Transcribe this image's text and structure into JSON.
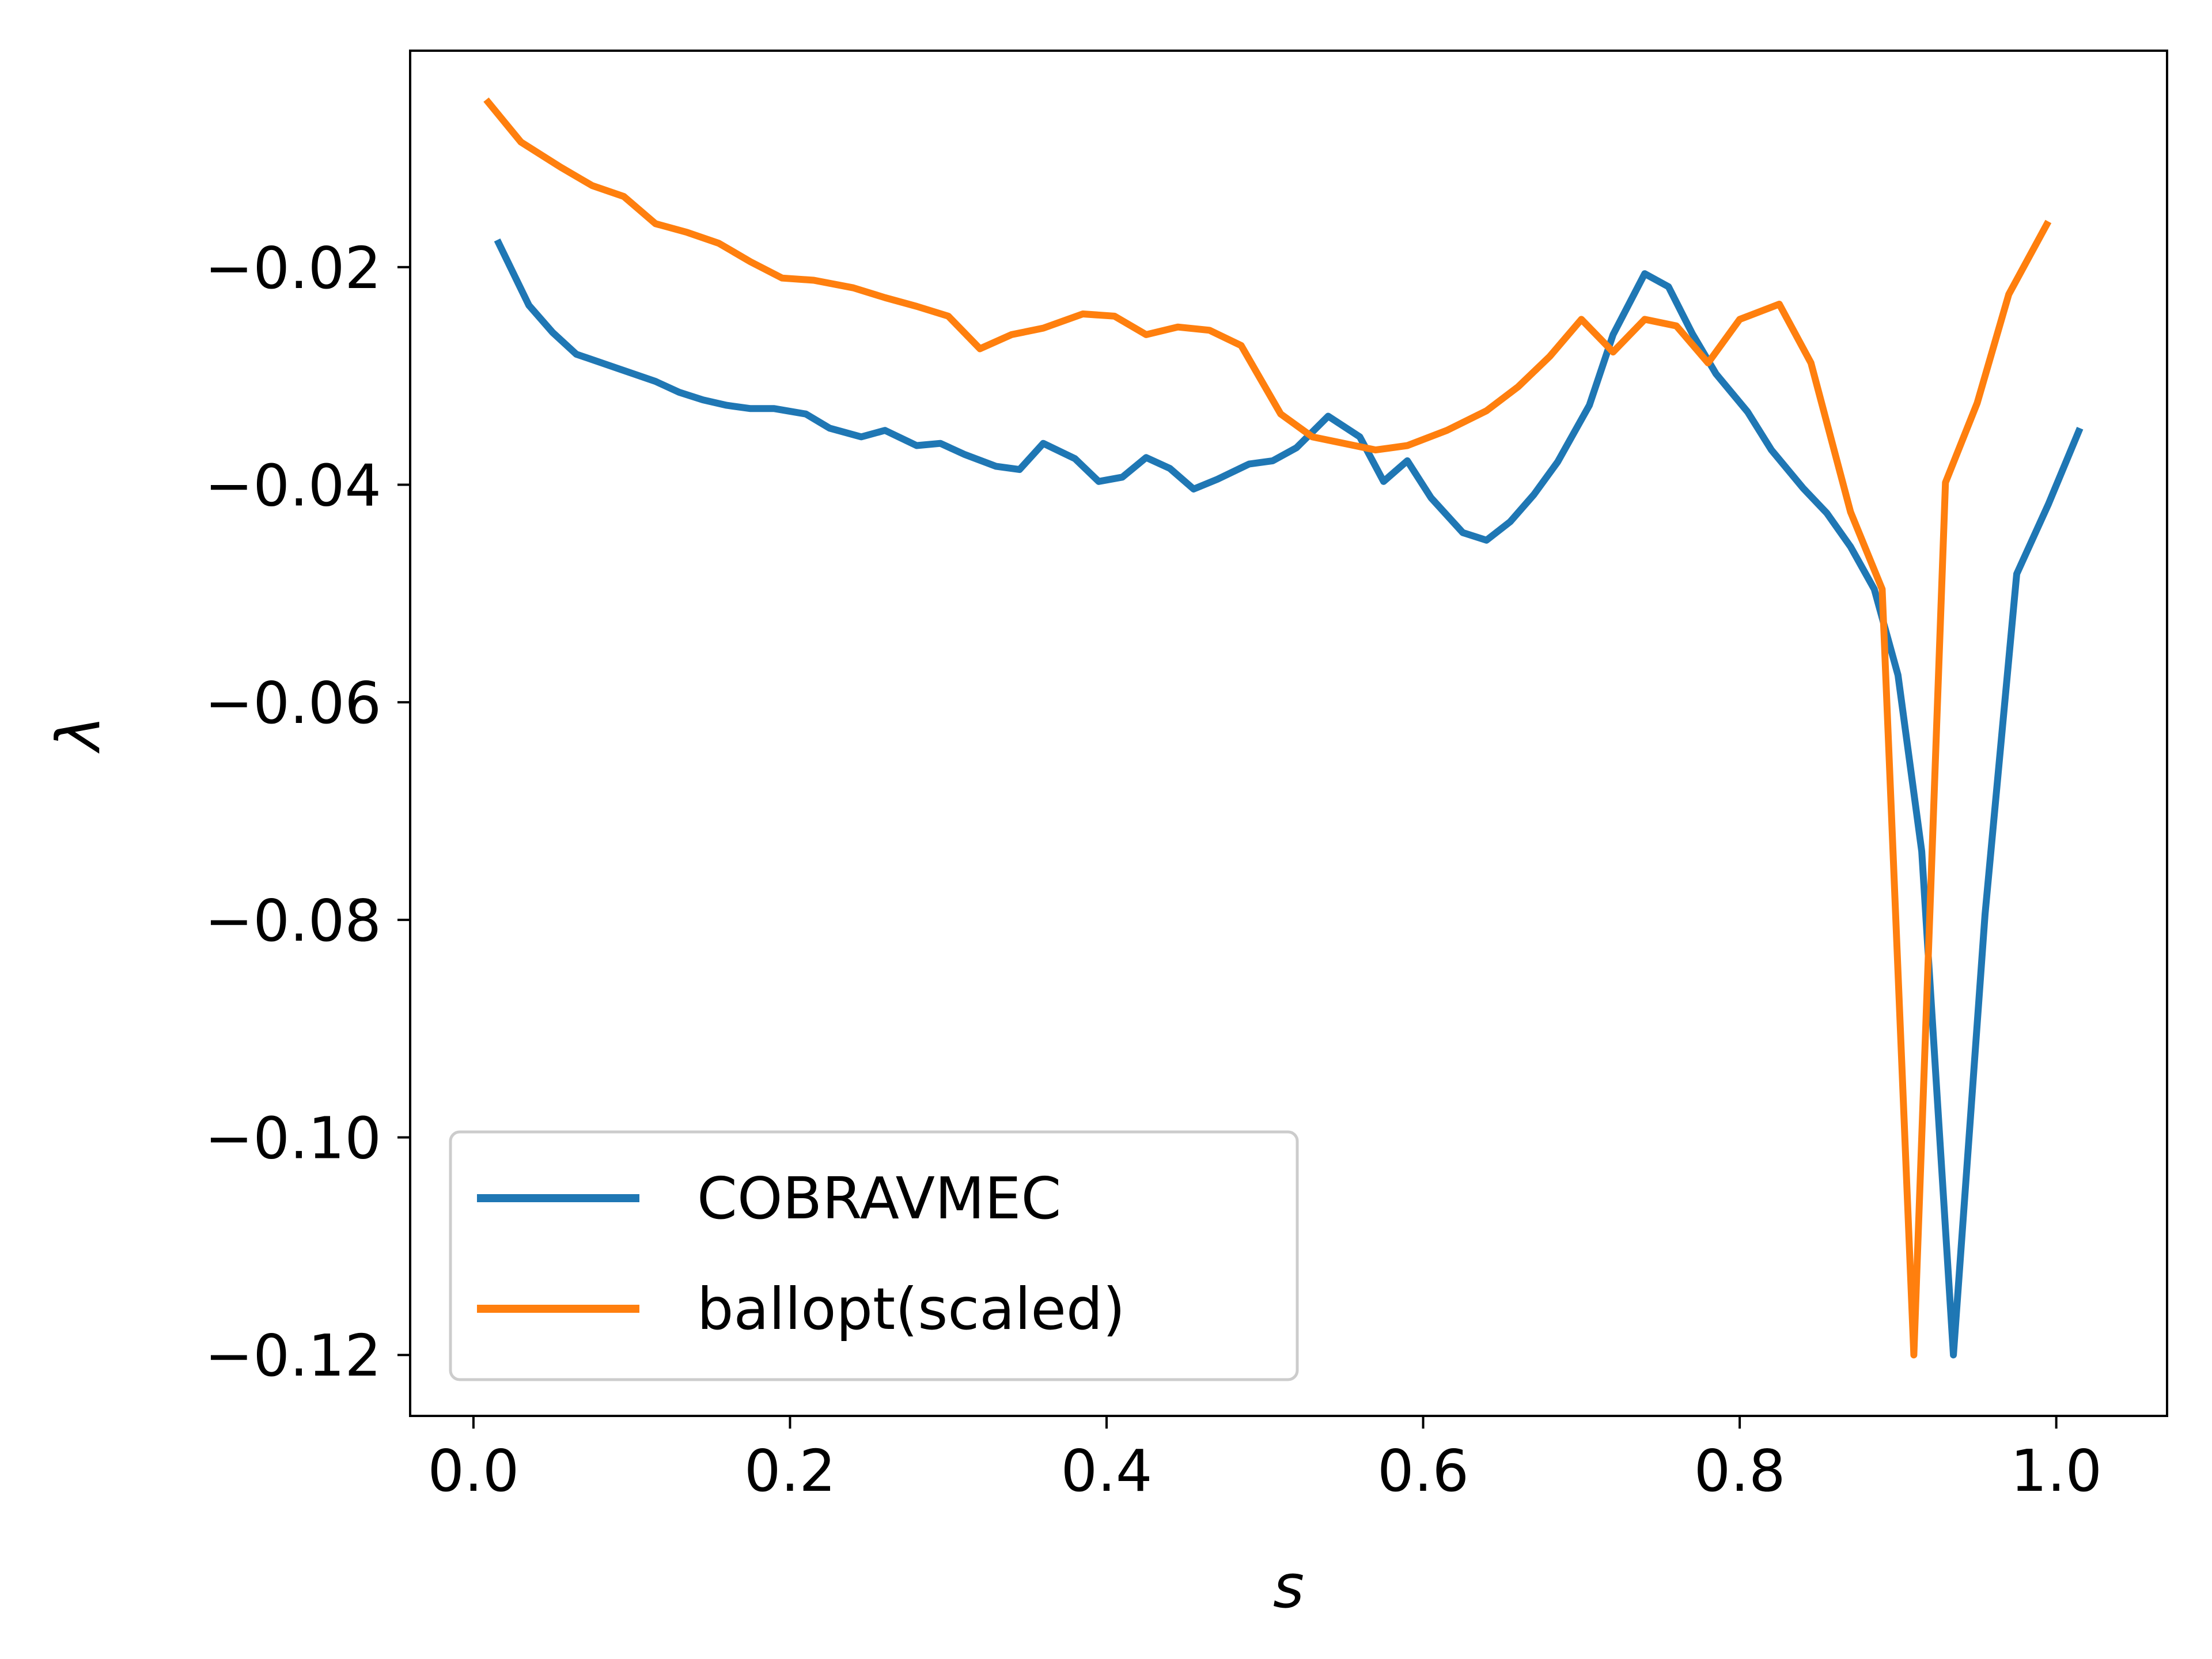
{
  "chart_data": {
    "type": "line",
    "title": "",
    "xlabel": "s",
    "ylabel": "λ",
    "xlim": [
      -0.04,
      1.07
    ],
    "ylim": [
      -0.1256,
      -0.0001
    ],
    "xticks": [
      0.0,
      0.2,
      0.4,
      0.6,
      0.8,
      1.0
    ],
    "xtick_labels": [
      "0.0",
      "0.2",
      "0.4",
      "0.6",
      "0.8",
      "1.0"
    ],
    "yticks": [
      -0.02,
      -0.04,
      -0.06,
      -0.08,
      -0.1,
      -0.12
    ],
    "ytick_labels": [
      "−0.02",
      "−0.04",
      "−0.06",
      "−0.08",
      "−0.10",
      "−0.12"
    ],
    "grid": false,
    "legend_position": "lower-left",
    "series": [
      {
        "name": "COBRAVMEC",
        "color": "#1f77b4",
        "x": [
          0.015,
          0.035,
          0.05,
          0.065,
          0.075,
          0.095,
          0.115,
          0.13,
          0.145,
          0.16,
          0.175,
          0.19,
          0.21,
          0.225,
          0.245,
          0.26,
          0.28,
          0.295,
          0.31,
          0.33,
          0.345,
          0.36,
          0.38,
          0.395,
          0.41,
          0.425,
          0.44,
          0.455,
          0.47,
          0.49,
          0.505,
          0.52,
          0.54,
          0.56,
          0.575,
          0.59,
          0.605,
          0.625,
          0.64,
          0.655,
          0.67,
          0.685,
          0.705,
          0.72,
          0.74,
          0.755,
          0.77,
          0.785,
          0.805,
          0.82,
          0.84,
          0.855,
          0.87,
          0.885,
          0.9,
          0.915,
          0.935,
          0.955,
          0.975,
          0.995,
          1.015
        ],
        "y": [
          -0.0175,
          -0.0235,
          -0.026,
          -0.028,
          -0.0285,
          -0.0295,
          -0.0305,
          -0.0315,
          -0.0322,
          -0.0327,
          -0.033,
          -0.033,
          -0.0335,
          -0.0348,
          -0.0356,
          -0.035,
          -0.0364,
          -0.0362,
          -0.0372,
          -0.0383,
          -0.0386,
          -0.0362,
          -0.0376,
          -0.0397,
          -0.0393,
          -0.0375,
          -0.0385,
          -0.0404,
          -0.0395,
          -0.0381,
          -0.0378,
          -0.0366,
          -0.0337,
          -0.0356,
          -0.0397,
          -0.0378,
          -0.0412,
          -0.0444,
          -0.0451,
          -0.0434,
          -0.0409,
          -0.0379,
          -0.0327,
          -0.0262,
          -0.0206,
          -0.0218,
          -0.0261,
          -0.0298,
          -0.0333,
          -0.0368,
          -0.0403,
          -0.0426,
          -0.0457,
          -0.0496,
          -0.0575,
          -0.0737,
          -0.12,
          -0.0795,
          -0.0482,
          -0.0418,
          -0.0348
        ]
      },
      {
        "name": "ballopt(scaled)",
        "color": "#ff7f0e",
        "x": [
          0.008,
          0.03,
          0.055,
          0.075,
          0.095,
          0.115,
          0.135,
          0.155,
          0.175,
          0.195,
          0.215,
          0.24,
          0.26,
          0.28,
          0.3,
          0.32,
          0.34,
          0.36,
          0.385,
          0.405,
          0.425,
          0.445,
          0.465,
          0.485,
          0.51,
          0.53,
          0.55,
          0.57,
          0.59,
          0.615,
          0.64,
          0.66,
          0.68,
          0.7,
          0.72,
          0.74,
          0.76,
          0.78,
          0.8,
          0.825,
          0.845,
          0.87,
          0.89,
          0.91,
          0.93,
          0.95,
          0.97,
          0.995
        ],
        "y": [
          -0.0046,
          -0.0085,
          -0.0108,
          -0.0125,
          -0.0135,
          -0.016,
          -0.0168,
          -0.0178,
          -0.0195,
          -0.021,
          -0.0212,
          -0.0219,
          -0.0228,
          -0.0236,
          -0.0245,
          -0.0275,
          -0.0262,
          -0.0256,
          -0.0243,
          -0.0245,
          -0.0262,
          -0.0255,
          -0.0258,
          -0.0272,
          -0.0335,
          -0.0356,
          -0.0362,
          -0.0368,
          -0.0364,
          -0.035,
          -0.0332,
          -0.031,
          -0.0282,
          -0.0248,
          -0.0278,
          -0.0248,
          -0.0254,
          -0.0288,
          -0.0248,
          -0.0234,
          -0.0288,
          -0.0425,
          -0.0496,
          -0.12,
          -0.0398,
          -0.0325,
          -0.0225,
          -0.0158
        ]
      }
    ]
  }
}
